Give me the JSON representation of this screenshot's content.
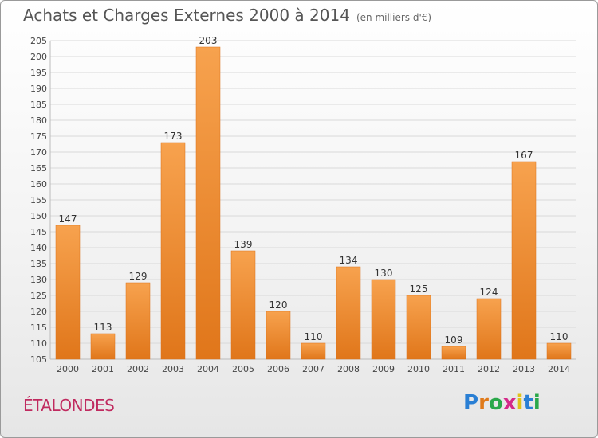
{
  "header": {
    "title": "Achats et Charges Externes 2000 à 2014",
    "unit": "(en milliers d'€)"
  },
  "footer": {
    "commune": "ÉTALONDES",
    "logo": {
      "letters": [
        "P",
        "r",
        "o",
        "x",
        "i",
        "t",
        "i"
      ],
      "colors": [
        "#2a7fd4",
        "#e07a1a",
        "#2aa84a",
        "#d42a8a",
        "#e0c21a",
        "#2a7fd4",
        "#2aa84a"
      ]
    }
  },
  "colors": {
    "bar": "#f08a2c",
    "bar_light": "#f5a55a",
    "bar_dark": "#e07418",
    "grid": "#d9d9d9",
    "axis_text": "#444444"
  },
  "chart_data": {
    "type": "bar",
    "categories": [
      "2000",
      "2001",
      "2002",
      "2003",
      "2004",
      "2005",
      "2006",
      "2007",
      "2008",
      "2009",
      "2010",
      "2011",
      "2012",
      "2013",
      "2014"
    ],
    "values": [
      147,
      113,
      129,
      173,
      203,
      139,
      120,
      110,
      134,
      130,
      125,
      109,
      124,
      167,
      110
    ],
    "ylim": [
      105,
      205
    ],
    "yticks": [
      105,
      110,
      115,
      120,
      125,
      130,
      135,
      140,
      145,
      150,
      155,
      160,
      165,
      170,
      175,
      180,
      185,
      190,
      195,
      200,
      205
    ],
    "grid": true,
    "xlabel": "",
    "ylabel": ""
  }
}
